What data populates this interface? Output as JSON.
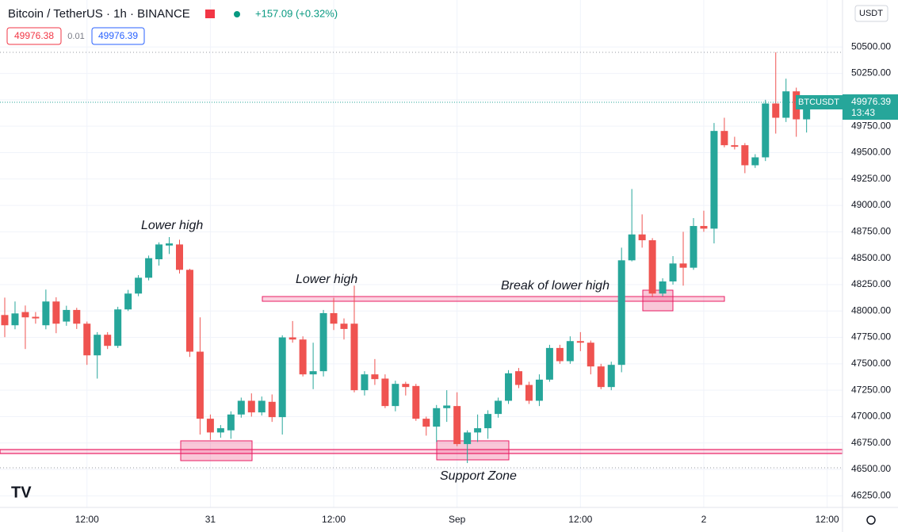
{
  "chart_data": {
    "type": "candlestick",
    "title": "Bitcoin / TetherUS · 1h · BINANCE",
    "change": "+157.09 (+0.32%)",
    "bid": "49976.38",
    "spread": "0.01",
    "ask": "49976.39",
    "currency": "USDT",
    "symbol": "BTCUSDT",
    "countdown": "13:43",
    "last_price": 49976.39,
    "annotations": [
      "Lower high",
      "Lower high",
      "Break of lower high",
      "Support Zone"
    ],
    "up_color": "#26a69a",
    "down_color": "#ef5350",
    "grid": true,
    "categories": [
      null,
      null,
      null,
      null,
      null,
      null,
      null,
      null,
      "12:00",
      null,
      null,
      null,
      null,
      null,
      null,
      null,
      null,
      null,
      null,
      null,
      "31",
      null,
      null,
      null,
      null,
      null,
      null,
      null,
      null,
      null,
      null,
      null,
      "12:00",
      null,
      null,
      null,
      null,
      null,
      null,
      null,
      null,
      null,
      null,
      null,
      "Sep",
      null,
      null,
      null,
      null,
      null,
      null,
      null,
      null,
      null,
      null,
      null,
      "12:00",
      null,
      null,
      null,
      null,
      null,
      null,
      null,
      null,
      null,
      null,
      null,
      "2",
      null,
      null,
      null,
      null,
      null,
      null,
      null,
      null,
      null,
      null,
      null,
      "12:00"
    ],
    "open": [
      47962,
      47865,
      47990,
      47945,
      47865,
      48090,
      47900,
      48010,
      47880,
      47580,
      47775,
      47670,
      48015,
      48165,
      48315,
      48490,
      48620,
      48630,
      48390,
      47615,
      46980,
      46850,
      46870,
      47020,
      47150,
      47040,
      47140,
      46995,
      47750,
      47730,
      47400,
      47430,
      47980,
      47880,
      47880,
      47250,
      47400,
      47360,
      47100,
      47310,
      47290,
      46980,
      46905,
      47080,
      47100,
      46740,
      46850,
      46890,
      47025,
      47150,
      47430,
      47300,
      47150,
      47350,
      47650,
      47525,
      47715,
      47700,
      47475,
      47280,
      47490,
      48480,
      48725,
      48670,
      48165,
      48280,
      48450,
      48410,
      48805,
      48780,
      49705,
      49570,
      49570,
      49380,
      49455,
      49965,
      49830,
      50080,
      49815,
      null,
      null
    ],
    "high": [
      48127,
      48090,
      48052,
      47990,
      48203,
      48130,
      48050,
      48030,
      47900,
      47800,
      47800,
      48040,
      48200,
      48340,
      48525,
      48650,
      48700,
      48675,
      48400,
      47940,
      47020,
      46920,
      47050,
      47180,
      47220,
      47190,
      47210,
      47770,
      47905,
      47760,
      47700,
      48010,
      48125,
      47930,
      48240,
      47430,
      47545,
      47400,
      47340,
      47330,
      47310,
      47000,
      47110,
      47250,
      47230,
      46870,
      47020,
      47060,
      47180,
      47440,
      47460,
      47330,
      47400,
      47680,
      47680,
      47760,
      47800,
      47720,
      47500,
      47520,
      48600,
      49155,
      48915,
      48690,
      48310,
      48520,
      48750,
      48880,
      48950,
      49780,
      49830,
      49650,
      49590,
      49485,
      50000,
      50450,
      50200,
      50115,
      50000,
      null,
      null
    ],
    "low": [
      47752,
      47827,
      47640,
      47880,
      47827,
      47790,
      47860,
      47830,
      47490,
      47360,
      47640,
      47650,
      48000,
      48140,
      48290,
      48430,
      48540,
      48355,
      47565,
      46830,
      46780,
      46800,
      46790,
      46990,
      47000,
      47010,
      46950,
      46830,
      47700,
      47380,
      47260,
      47380,
      47820,
      47730,
      47230,
      47200,
      47300,
      47080,
      47050,
      47200,
      46960,
      46820,
      46760,
      46950,
      46720,
      46560,
      46760,
      46790,
      46990,
      47120,
      47270,
      47120,
      47100,
      47330,
      47500,
      47500,
      47620,
      47400,
      47260,
      47250,
      47420,
      48470,
      48600,
      48130,
      48140,
      48250,
      48240,
      48390,
      48750,
      48640,
      49550,
      49530,
      49305,
      49355,
      49420,
      49680,
      49790,
      49650,
      49690,
      null,
      null
    ],
    "close": [
      47865,
      47977,
      47940,
      47930,
      48090,
      47880,
      48010,
      47880,
      47580,
      47775,
      47670,
      48015,
      48165,
      48315,
      48500,
      48630,
      48640,
      48390,
      47615,
      46980,
      46850,
      46890,
      47020,
      47150,
      47040,
      47150,
      46995,
      47750,
      47730,
      47400,
      47430,
      47980,
      47880,
      47830,
      47250,
      47400,
      47355,
      47100,
      47310,
      47280,
      46980,
      46905,
      47080,
      47105,
      46740,
      46850,
      46890,
      47025,
      47150,
      47410,
      47300,
      47150,
      47350,
      47650,
      47525,
      47715,
      47700,
      47475,
      47280,
      47490,
      48480,
      48725,
      48670,
      48165,
      48280,
      48450,
      48410,
      48805,
      48780,
      49705,
      49570,
      49555,
      49380,
      49455,
      49965,
      49830,
      50080,
      49815,
      49976.39,
      null,
      null
    ],
    "ylim": [
      46140,
      50945
    ],
    "yticks": [
      {
        "value": 50500,
        "label": "50500.00"
      },
      {
        "value": 50250,
        "label": "50250.00"
      },
      {
        "value": 50000,
        "label": "50000.00"
      },
      {
        "value": 49750,
        "label": "49750.00"
      },
      {
        "value": 49500,
        "label": "49500.00"
      },
      {
        "value": 49250,
        "label": "49250.00"
      },
      {
        "value": 49000,
        "label": "49000.00"
      },
      {
        "value": 48750,
        "label": "48750.00"
      },
      {
        "value": 48500,
        "label": "48500.00"
      },
      {
        "value": 48250,
        "label": "48250.00"
      },
      {
        "value": 48000,
        "label": "48000.00"
      },
      {
        "value": 47750,
        "label": "47750.00"
      },
      {
        "value": 47500,
        "label": "47500.00"
      },
      {
        "value": 47250,
        "label": "47250.00"
      },
      {
        "value": 47000,
        "label": "47000.00"
      },
      {
        "value": 46750,
        "label": "46750.00"
      },
      {
        "value": 46500,
        "label": "46500.00"
      },
      {
        "value": 46250,
        "label": "46250.00"
      }
    ]
  }
}
